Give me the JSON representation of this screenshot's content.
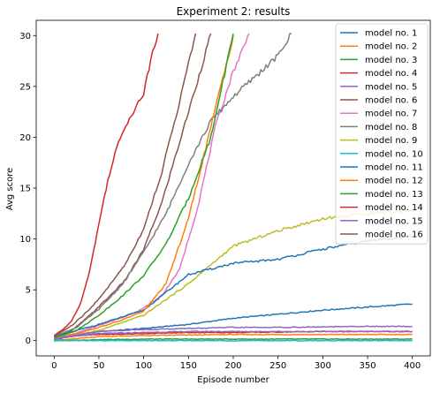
{
  "chart_data": {
    "type": "line",
    "title": "Experiment 2: results",
    "xlabel": "Episode number",
    "ylabel": "Avg score",
    "xlim": [
      -20,
      420
    ],
    "ylim": [
      -1.5,
      31.5
    ],
    "xticks": [
      0,
      50,
      100,
      150,
      200,
      250,
      300,
      350,
      400
    ],
    "yticks": [
      0,
      5,
      10,
      15,
      20,
      25,
      30
    ],
    "grid": false,
    "legend_position": "upper right",
    "series": [
      {
        "name": "model no. 1",
        "color": "#1f77b4",
        "x": [
          0,
          50,
          100,
          150,
          200,
          250,
          300,
          350,
          400
        ],
        "y": [
          0.1,
          0.9,
          1.2,
          1.6,
          2.2,
          2.6,
          3.0,
          3.3,
          3.6
        ]
      },
      {
        "name": "model no. 2",
        "color": "#ff7f0e",
        "x": [
          0,
          50,
          100,
          150,
          200,
          250,
          300,
          350,
          400
        ],
        "y": [
          0.0,
          0.4,
          0.5,
          0.55,
          0.6,
          0.6,
          0.6,
          0.6,
          0.6
        ]
      },
      {
        "name": "model no. 3",
        "color": "#2ca02c",
        "x": [
          0,
          50,
          100,
          150,
          200,
          250,
          300,
          350,
          400
        ],
        "y": [
          0.0,
          0.1,
          0.15,
          0.15,
          0.15,
          0.15,
          0.15,
          0.15,
          0.15
        ]
      },
      {
        "name": "model no. 4",
        "color": "#d62728",
        "x": [
          0,
          50,
          100,
          150,
          200,
          250,
          300,
          350,
          400
        ],
        "y": [
          0.4,
          0.6,
          0.7,
          0.8,
          0.8,
          0.85,
          0.9,
          0.9,
          0.9
        ]
      },
      {
        "name": "model no. 5",
        "color": "#9467bd",
        "x": [
          0,
          50,
          100,
          150,
          200,
          250,
          300,
          350,
          400
        ],
        "y": [
          0.2,
          0.7,
          0.8,
          0.9,
          0.9,
          0.9,
          0.9,
          0.9,
          0.9
        ]
      },
      {
        "name": "model no. 6",
        "color": "#8c564b",
        "x": [
          0,
          20,
          40,
          60,
          80,
          100,
          120,
          140,
          160,
          175
        ],
        "y": [
          0.3,
          1.0,
          2.5,
          4.2,
          6.0,
          9.0,
          13.5,
          19.5,
          25.5,
          30.2
        ]
      },
      {
        "name": "model no. 7",
        "color": "#e377c2",
        "x": [
          0,
          20,
          40,
          60,
          80,
          100,
          120,
          140,
          160,
          180,
          200,
          218
        ],
        "y": [
          0.3,
          0.6,
          1.2,
          1.8,
          2.4,
          3.2,
          4.4,
          7.0,
          13.0,
          21.0,
          26.5,
          30.2
        ]
      },
      {
        "name": "model no. 8",
        "color": "#7f7f7f",
        "x": [
          0,
          25,
          50,
          75,
          100,
          125,
          150,
          175,
          200,
          225,
          250,
          265
        ],
        "y": [
          0.4,
          1.3,
          3.1,
          5.4,
          8.7,
          12.5,
          17.4,
          21.6,
          24.0,
          26.0,
          28.0,
          30.2
        ]
      },
      {
        "name": "model no. 9",
        "color": "#bcbd22",
        "x": [
          0,
          50,
          100,
          150,
          200,
          250,
          300,
          350,
          400
        ],
        "y": [
          0.2,
          1.0,
          2.5,
          5.6,
          9.3,
          10.8,
          12.0,
          12.5,
          12.8
        ]
      },
      {
        "name": "model no. 10",
        "color": "#17becf",
        "x": [
          0,
          50,
          100,
          150,
          200,
          250,
          300,
          350,
          400
        ],
        "y": [
          0.0,
          0.0,
          0.0,
          0.0,
          0.0,
          0.0,
          0.0,
          0.0,
          0.0
        ]
      },
      {
        "name": "model no. 11",
        "color": "#1f77b4",
        "x": [
          0,
          50,
          100,
          150,
          200,
          250,
          300,
          350,
          400
        ],
        "y": [
          0.4,
          1.6,
          3.0,
          6.5,
          7.6,
          8.0,
          9.0,
          9.8,
          10.3
        ]
      },
      {
        "name": "model no. 12",
        "color": "#ff7f0e",
        "x": [
          0,
          25,
          50,
          75,
          100,
          125,
          150,
          175,
          200
        ],
        "y": [
          0.3,
          0.7,
          1.3,
          2.0,
          2.9,
          5.6,
          12.0,
          21.0,
          30.0
        ]
      },
      {
        "name": "model no. 13",
        "color": "#2ca02c",
        "x": [
          0,
          25,
          50,
          75,
          100,
          125,
          150,
          175,
          200
        ],
        "y": [
          0.3,
          1.0,
          2.5,
          4.3,
          6.4,
          9.5,
          14.0,
          20.0,
          30.2
        ]
      },
      {
        "name": "model no. 14",
        "color": "#d62728",
        "x": [
          0,
          10,
          20,
          30,
          40,
          50,
          60,
          70,
          80,
          90,
          100,
          110,
          116
        ],
        "y": [
          0.5,
          1.1,
          2.0,
          3.8,
          7.0,
          11.5,
          15.8,
          19.0,
          21.2,
          22.8,
          24.3,
          28.5,
          30.2
        ]
      },
      {
        "name": "model no. 15",
        "color": "#9467bd",
        "x": [
          0,
          50,
          100,
          150,
          200,
          250,
          300,
          350,
          400
        ],
        "y": [
          0.2,
          0.9,
          1.1,
          1.2,
          1.3,
          1.3,
          1.35,
          1.4,
          1.4
        ]
      },
      {
        "name": "model no. 16",
        "color": "#8c564b",
        "x": [
          0,
          20,
          40,
          60,
          80,
          100,
          120,
          140,
          158
        ],
        "y": [
          0.4,
          1.5,
          3.1,
          5.2,
          7.6,
          11.0,
          16.5,
          23.5,
          30.2
        ]
      }
    ]
  }
}
